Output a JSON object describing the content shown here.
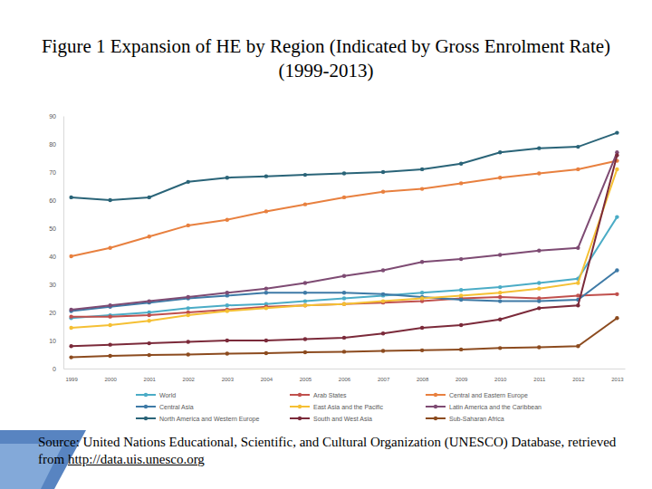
{
  "chart_data": {
    "type": "line",
    "title": "Figure 1 Expansion of HE by Region (Indicated by Gross Enrolment Rate) (1999-2013)",
    "source": "Source: United Nations Educational, Scientific, and Cultural Organization (UNESCO) Database, retrieved from http://data.uis.unesco.org",
    "categories": [
      "1999",
      "2000",
      "2001",
      "2002",
      "2003",
      "2004",
      "2005",
      "2006",
      "2007",
      "2008",
      "2009",
      "2010",
      "2011",
      "2012",
      "2013"
    ],
    "ylim": [
      0,
      90
    ],
    "yticks": [
      0,
      10,
      20,
      30,
      40,
      50,
      60,
      70,
      80,
      90
    ],
    "grid": false,
    "legend": "bottom",
    "marker": "circle",
    "series": [
      {
        "name": "World",
        "color": "#4bacc6",
        "values": [
          18,
          19,
          20,
          21.5,
          22.5,
          23,
          24,
          25,
          26,
          27,
          28,
          29,
          30.5,
          32,
          54
        ]
      },
      {
        "name": "Arab States",
        "color": "#c0504d",
        "values": [
          18.5,
          18.5,
          19,
          20,
          21,
          22,
          22.5,
          23,
          23.5,
          24,
          25,
          25.5,
          25,
          26,
          26.5
        ]
      },
      {
        "name": "Central and Eastern Europe",
        "color": "#e8803f",
        "values": [
          40,
          43,
          47,
          51,
          53,
          56,
          58.5,
          61,
          63,
          64,
          66,
          68,
          69.5,
          71,
          74
        ]
      },
      {
        "name": "Central Asia",
        "color": "#3e7aa6",
        "values": [
          20.5,
          22,
          23.5,
          25,
          26,
          27,
          27,
          27,
          26.5,
          25.5,
          24.5,
          24,
          24,
          24.5,
          35
        ]
      },
      {
        "name": "East Asia and the Pacific",
        "color": "#f5c034",
        "values": [
          14.5,
          15.5,
          17,
          19,
          20.5,
          21.5,
          22.5,
          23,
          24,
          25,
          26,
          27,
          28.5,
          30.5,
          71
        ]
      },
      {
        "name": "Latin America and the Caribbean",
        "color": "#7e4b73",
        "values": [
          21,
          22.5,
          24,
          25.5,
          27,
          28.5,
          30.5,
          33,
          35,
          38,
          39,
          40.5,
          42,
          43,
          77
        ]
      },
      {
        "name": "North America and Western Europe",
        "color": "#2a6478",
        "values": [
          61,
          60,
          61,
          66.5,
          68,
          68.5,
          69,
          69.5,
          70,
          71,
          73,
          77,
          78.5,
          79,
          84
        ]
      },
      {
        "name": "South and West Asia",
        "color": "#7b2a3a",
        "values": [
          8,
          8.5,
          9,
          9.5,
          10,
          10,
          10.5,
          11,
          12.5,
          14.5,
          15.5,
          17.5,
          21.5,
          22.5,
          76
        ]
      },
      {
        "name": "Sub-Saharan Africa",
        "color": "#8c4b1f",
        "values": [
          4,
          4.5,
          4.8,
          5,
          5.3,
          5.5,
          5.8,
          6,
          6.3,
          6.5,
          6.8,
          7.3,
          7.6,
          8,
          18
        ]
      }
    ]
  }
}
